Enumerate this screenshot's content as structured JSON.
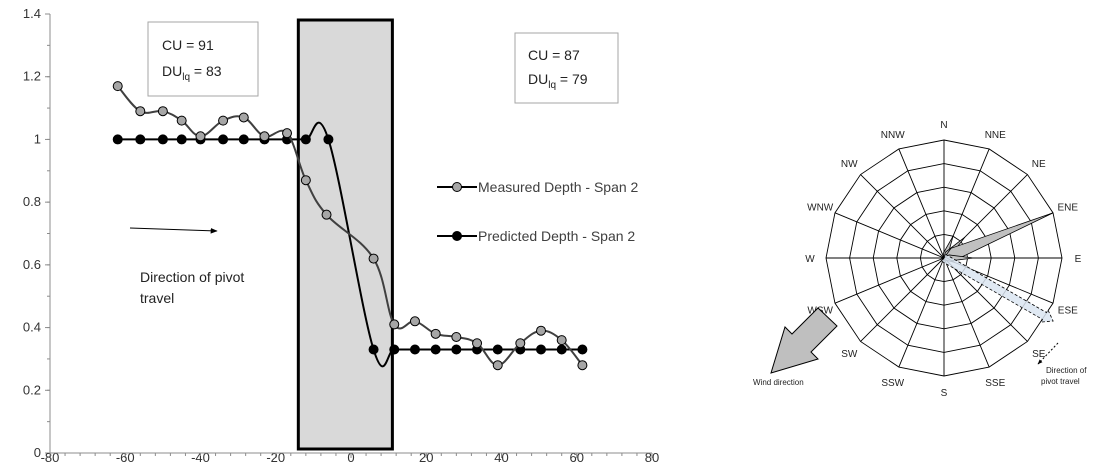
{
  "chart_data": [
    {
      "type": "line",
      "xlim": [
        -80,
        80
      ],
      "ylim": [
        0,
        1.4
      ],
      "x_ticks": [
        -80,
        -60,
        -40,
        -20,
        0,
        20,
        40,
        60,
        80
      ],
      "y_ticks": [
        "0",
        "0.2",
        "0.4",
        "0.6",
        "0.8",
        "1",
        "1.2",
        "1.4"
      ],
      "grid": false,
      "legend_position": "right",
      "shaded_region": [
        -14,
        11
      ],
      "series": [
        {
          "name": "Measured Depth - Span 2",
          "color": "#a6a6a6",
          "points": [
            [
              -62,
              1.17
            ],
            [
              -56,
              1.09
            ],
            [
              -50,
              1.09
            ],
            [
              -45,
              1.06
            ],
            [
              -40,
              1.01
            ],
            [
              -34,
              1.06
            ],
            [
              -28.5,
              1.07
            ],
            [
              -23,
              1.01
            ],
            [
              -17,
              1.02
            ],
            [
              -12,
              0.87
            ],
            [
              -6.5,
              0.76
            ],
            [
              6,
              0.62
            ],
            [
              11.5,
              0.41
            ],
            [
              17,
              0.42
            ],
            [
              22.5,
              0.38
            ],
            [
              28,
              0.37
            ],
            [
              33.5,
              0.35
            ],
            [
              39,
              0.28
            ],
            [
              45,
              0.35
            ],
            [
              50.5,
              0.39
            ],
            [
              56,
              0.36
            ],
            [
              61.5,
              0.28
            ]
          ]
        },
        {
          "name": "Predicted Depth - Span 2",
          "color": "#000000",
          "points": [
            [
              -62,
              1.0
            ],
            [
              -56,
              1.0
            ],
            [
              -50,
              1.0
            ],
            [
              -45,
              1.0
            ],
            [
              -40,
              1.0
            ],
            [
              -34,
              1.0
            ],
            [
              -28.5,
              1.0
            ],
            [
              -23,
              1.0
            ],
            [
              -17,
              1.0
            ],
            [
              -12,
              1.0
            ],
            [
              -6,
              1.0
            ],
            [
              6,
              0.33
            ],
            [
              11.5,
              0.33
            ],
            [
              17,
              0.33
            ],
            [
              22.5,
              0.33
            ],
            [
              28,
              0.33
            ],
            [
              33.5,
              0.33
            ],
            [
              39,
              0.33
            ],
            [
              45,
              0.33
            ],
            [
              50.5,
              0.33
            ],
            [
              56,
              0.33
            ],
            [
              61.5,
              0.33
            ]
          ]
        }
      ],
      "annotations": {
        "box_left": {
          "cu": "CU = 91",
          "du_main": "DU",
          "du_sub": "lq",
          "du_value": " = 83"
        },
        "box_right": {
          "cu": "CU = 87",
          "du_main": "DU",
          "du_sub": "lq",
          "du_value": " = 79"
        },
        "direction_label_line1": "Direction of pivot",
        "direction_label_line2": "travel"
      }
    },
    {
      "type": "radar",
      "directions": [
        "N",
        "NNE",
        "NE",
        "ENE",
        "E",
        "ESE",
        "SE",
        "SSE",
        "S",
        "SSW",
        "SW",
        "WSW",
        "W",
        "WNW",
        "NW",
        "NNW"
      ],
      "rings": 5,
      "wind_petals": [
        {
          "direction": "NNE",
          "value": 0.2
        },
        {
          "direction": "NE",
          "value": 0.25
        },
        {
          "direction": "ENE",
          "value": 1.0
        },
        {
          "direction": "E",
          "value": 0.25
        },
        {
          "direction": "ESE",
          "value": 0.1
        }
      ],
      "wind_fill": "#c0c0c0",
      "pivot_direction_degrees": 120,
      "labels": {
        "wind_direction": "Wind direction",
        "pivot_line1": "Direction of",
        "pivot_line2": "pivot travel"
      }
    }
  ]
}
